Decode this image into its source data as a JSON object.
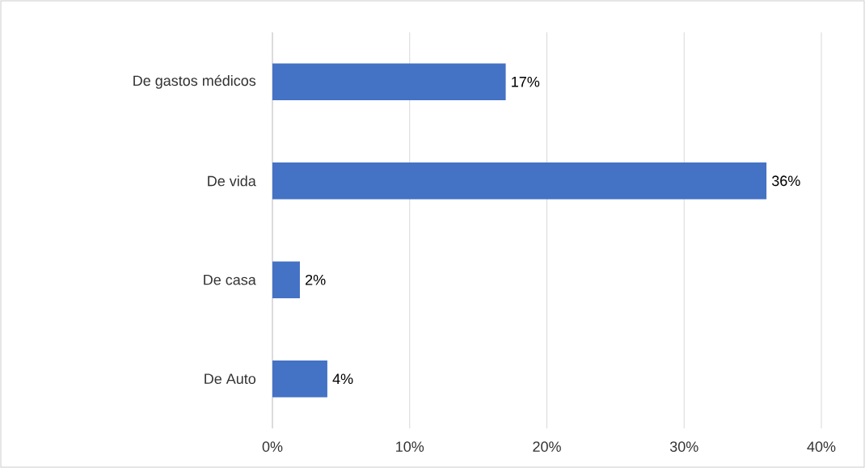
{
  "chart_data": {
    "type": "bar",
    "orientation": "horizontal",
    "categories": [
      "De gastos médicos",
      "De vida",
      "De casa",
      "De Auto"
    ],
    "values": [
      17,
      36,
      2,
      4
    ],
    "value_labels": [
      "17%",
      "36%",
      "2%",
      "4%"
    ],
    "color": "#4472c4",
    "xlim": [
      0,
      40
    ],
    "xticks": [
      {
        "value": 0,
        "label": "0%"
      },
      {
        "value": 10,
        "label": "10%"
      },
      {
        "value": 20,
        "label": "20%"
      },
      {
        "value": 30,
        "label": "30%"
      },
      {
        "value": 40,
        "label": "40%"
      }
    ],
    "grid": "x"
  }
}
